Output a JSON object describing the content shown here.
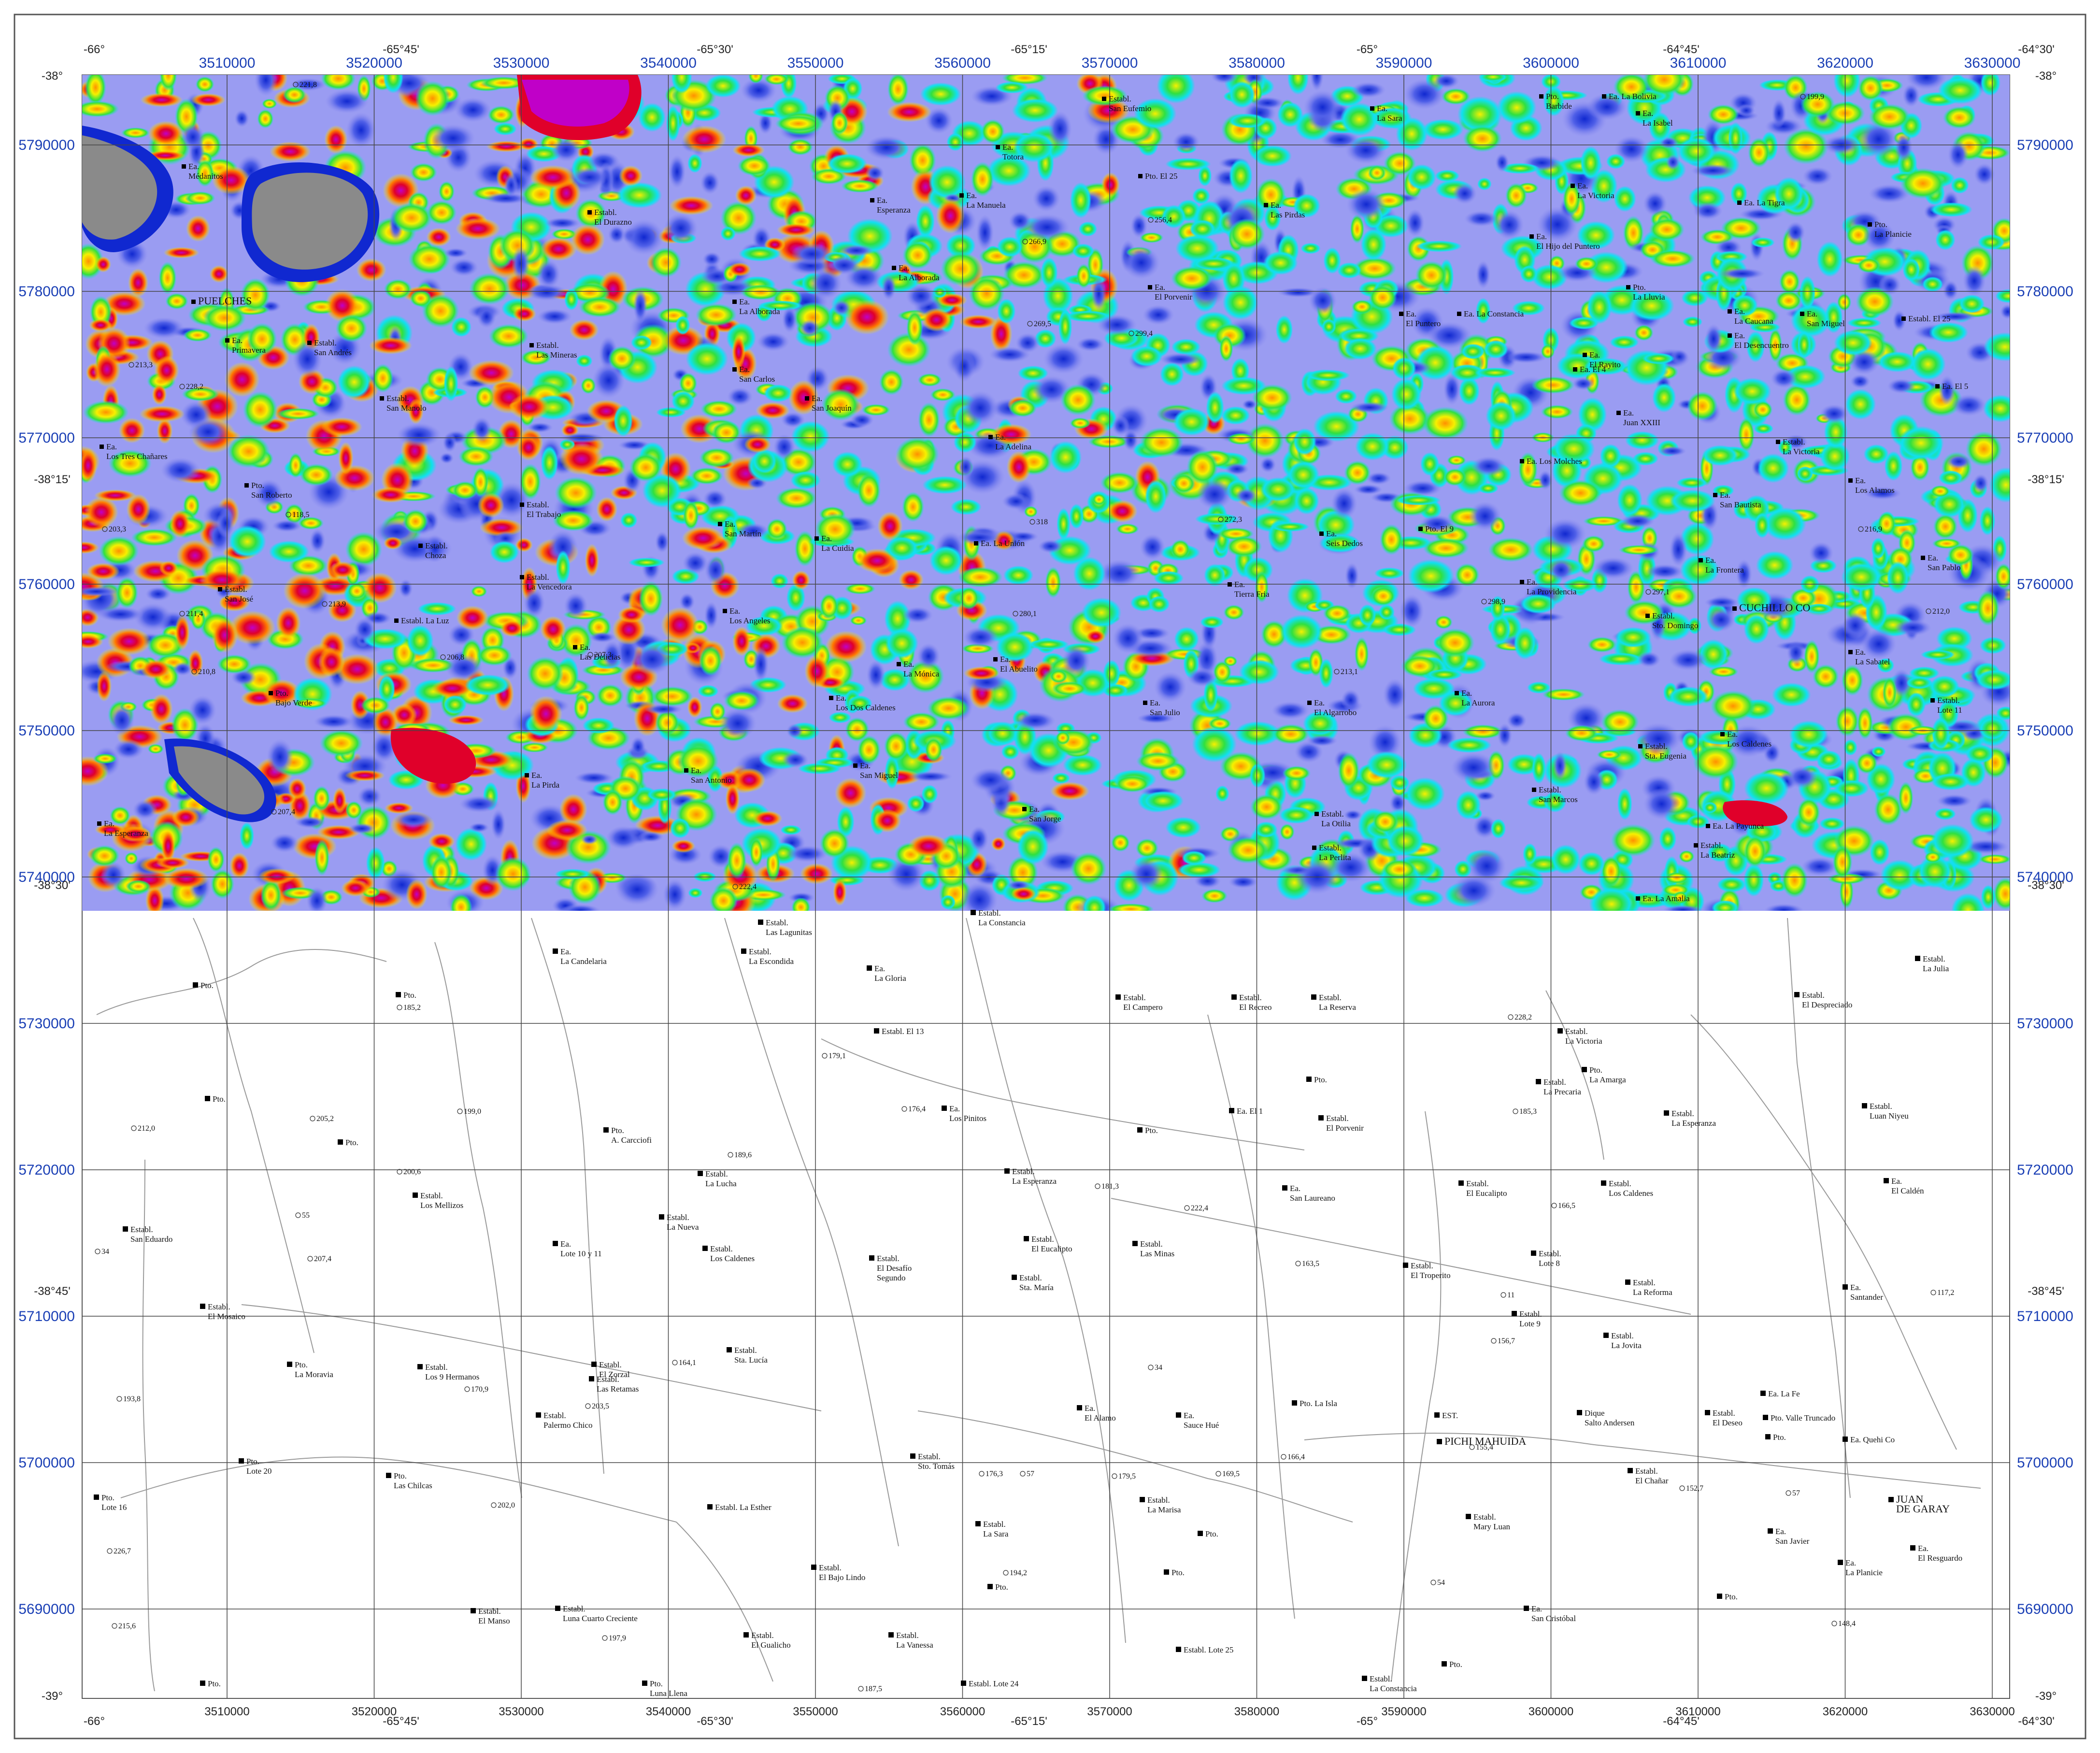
{
  "map": {
    "colors": {
      "frame": "#555555",
      "grid": "#444444",
      "road": "#9a9a9a",
      "background": "#ffffff",
      "lake": "#8a8a8a",
      "magnetic_high": "#e0002a",
      "magnetic_top": "#c000c8",
      "magnetic_mid": "#f6f000",
      "magnetic_low": "#8c8cf0",
      "magnetic_lowest": "#1028d0",
      "magnetic_green": "#30e040",
      "magnetic_cyan": "#10e0f0"
    },
    "utm_x": [
      "3510000",
      "3520000",
      "3530000",
      "3540000",
      "3550000",
      "3560000",
      "3570000",
      "3580000",
      "3590000",
      "3600000",
      "3610000",
      "3620000",
      "3630000"
    ],
    "utm_y": [
      "5790000",
      "5780000",
      "5770000",
      "5760000",
      "5750000",
      "5740000",
      "5730000",
      "5720000",
      "5710000",
      "5700000",
      "5690000"
    ],
    "lon_top": [
      "-66°",
      "-65°45'",
      "-65°30'",
      "-65°15'",
      "-65°",
      "-64°45'",
      "-64°30'"
    ],
    "lat_left": [
      "-38°",
      "-38°15'",
      "-38°30'",
      "-38°45'",
      "-39°"
    ],
    "lat_right": [
      "-38°",
      "-38°15'",
      "-38°30'",
      "-38°45'",
      "-39°"
    ],
    "places_top": [
      {
        "t": "Ea.",
        "t2": "Médanitos"
      },
      {
        "t": "PUELCHES"
      },
      {
        "t": "Ea.",
        "t2": "Primavera"
      },
      {
        "t": "Establ.",
        "t2": "San Andrés"
      },
      {
        "t": "Establ.",
        "t2": "El Durazno"
      },
      {
        "t": "Establ.",
        "t2": "Las Mineras"
      },
      {
        "t": "Establ.",
        "t2": "San Manolo"
      },
      {
        "t": "Ea.",
        "t2": "Los Tres Chañares"
      },
      {
        "t": "Pto.",
        "t2": "San Roberto"
      },
      {
        "t": "Establ.",
        "t2": "El Trabajo"
      },
      {
        "t": "Establ.",
        "t2": "Choza"
      },
      {
        "t": "Establ.",
        "t2": "La Vencedora"
      },
      {
        "t": "Establ.",
        "t2": "San José"
      },
      {
        "t": "Establ. La Luz"
      },
      {
        "t": "Ea.",
        "t2": "Las Delicias"
      },
      {
        "t": "Pto.",
        "t2": "Bajo Verde"
      },
      {
        "t": "Ea.",
        "t2": "La Pirda"
      },
      {
        "t": "Ea.",
        "t2": "La Esperanza"
      },
      {
        "t": "Ea.",
        "t2": "La Alborada"
      },
      {
        "t": "Ea.",
        "t2": "San Carlos"
      },
      {
        "t": "Ea.",
        "t2": "San Joaquín"
      },
      {
        "t": "Ea.",
        "t2": "San Martín"
      },
      {
        "t": "Ea.",
        "t2": "Los Angeles"
      },
      {
        "t": "Ea.",
        "t2": "San Antonio"
      },
      {
        "t": "Ea.",
        "t2": "Esperanza"
      },
      {
        "t": "Ea.",
        "t2": "La Manuela"
      },
      {
        "t": "Ea.",
        "t2": "Totora"
      },
      {
        "t": "Ea.",
        "t2": "La Alborada"
      },
      {
        "t": "Ea.",
        "t2": "La Adelina"
      },
      {
        "t": "Ea. La Unión"
      },
      {
        "t": "Ea.",
        "t2": "La Cuidia"
      },
      {
        "t": "Ea.",
        "t2": "La Mónica"
      },
      {
        "t": "Ea.",
        "t2": "Los Dos Caldenes"
      },
      {
        "t": "Ea.",
        "t2": "San Miguel"
      },
      {
        "t": "Ea.",
        "t2": "El Abuelito"
      },
      {
        "t": "Ea.",
        "t2": "San Jorge"
      },
      {
        "t": "Establ.",
        "t2": "San Eufemio"
      },
      {
        "t": "Pto. El 25"
      },
      {
        "t": "Ea.",
        "t2": "El Porvenir"
      },
      {
        "t": "Ea.",
        "t2": "Las Pirdas"
      },
      {
        "t": "Ea.",
        "t2": "Tierra Fria"
      },
      {
        "t": "Ea.",
        "t2": "Seis Dedos"
      },
      {
        "t": "Ea.",
        "t2": "San Julio"
      },
      {
        "t": "Ea.",
        "t2": "El Algarrobo"
      },
      {
        "t": "Establ.",
        "t2": "La Otilia"
      },
      {
        "t": "Establ.",
        "t2": "La Perlita"
      },
      {
        "t": "Ea.",
        "t2": "La Sara"
      },
      {
        "t": "Ea.",
        "t2": "El Puntero"
      },
      {
        "t": "Ea. La Constancia"
      },
      {
        "t": "Pto. El 9"
      },
      {
        "t": "Ea.",
        "t2": "La Aurora"
      },
      {
        "t": "Pto.",
        "t2": "Barbide"
      },
      {
        "t": "Ea. La Bolivia"
      },
      {
        "t": "Ea.",
        "t2": "La Isabel"
      },
      {
        "t": "Ea.",
        "t2": "La Victoria"
      },
      {
        "t": "Ea.",
        "t2": "El Hijo del Puntero"
      },
      {
        "t": "Ea. El 4"
      },
      {
        "t": "Ea.",
        "t2": "El Rayito"
      },
      {
        "t": "Ea.",
        "t2": "Juan XXIII"
      },
      {
        "t": "Ea. Los Molches"
      },
      {
        "t": "Ea.",
        "t2": "La Providencia"
      },
      {
        "t": "Establ.",
        "t2": "Sto. Domingo"
      },
      {
        "t": "Establ.",
        "t2": "Sta. Eugenia"
      },
      {
        "t": "Establ.",
        "t2": "San Marcos"
      },
      {
        "t": "Ea. La Tigra"
      },
      {
        "t": "Pto.",
        "t2": "La Planicie"
      },
      {
        "t": "Pto.",
        "t2": "La Lluvia"
      },
      {
        "t": "Ea.",
        "t2": "La Caucana"
      },
      {
        "t": "Ea.",
        "t2": "El Desencuentro"
      },
      {
        "t": "Ea.",
        "t2": "San Miguel"
      },
      {
        "t": "Establ. El 25"
      },
      {
        "t": "Ea. El 5"
      },
      {
        "t": "Establ.",
        "t2": "La Victoria"
      },
      {
        "t": "Ea.",
        "t2": "San Bautista"
      },
      {
        "t": "Ea.",
        "t2": "Los Alamos"
      },
      {
        "t": "Ea.",
        "t2": "La Frontera"
      },
      {
        "t": "Ea.",
        "t2": "San Pablo"
      },
      {
        "t": "CUCHILLO CO"
      },
      {
        "t": "Ea.",
        "t2": "La Sabatel"
      },
      {
        "t": "Ea.",
        "t2": "Los Caldenes"
      },
      {
        "t": "Establ.",
        "t2": "Lote 11"
      },
      {
        "t": "Ea. La Payunca"
      },
      {
        "t": "Establ.",
        "t2": "La Beatriz"
      },
      {
        "t": "Ea. La Amalia"
      }
    ],
    "places_bottom": [
      {
        "t": "Ea.",
        "t2": "La Candelaria"
      },
      {
        "t": "Establ.",
        "t2": "Las Lagunitas"
      },
      {
        "t": "Establ.",
        "t2": "La Escondida"
      },
      {
        "t": "Ea.",
        "t2": "La Gloria"
      },
      {
        "t": "Establ.",
        "t2": "La Constancia"
      },
      {
        "t": "Pto."
      },
      {
        "t": "Pto."
      },
      {
        "t": "Pto."
      },
      {
        "t": "Pto."
      },
      {
        "t": "Pto.",
        "t2": "A. Carcciofi"
      },
      {
        "t": "Establ. El 13"
      },
      {
        "t": "Ea.",
        "t2": "Los Pinitos"
      },
      {
        "t": "Establ.",
        "t2": "El Campero"
      },
      {
        "t": "Establ.",
        "t2": "El Recreo"
      },
      {
        "t": "Establ.",
        "t2": "La Reserva"
      },
      {
        "t": "Pto."
      },
      {
        "t": "Ea. El 1"
      },
      {
        "t": "Establ.",
        "t2": "El Porvenir"
      },
      {
        "t": "Pto."
      },
      {
        "t": "Establ.",
        "t2": "La Victoria"
      },
      {
        "t": "Pto.",
        "t2": "La Amarga"
      },
      {
        "t": "Establ.",
        "t2": "La Precaria"
      },
      {
        "t": "Establ.",
        "t2": "La Esperanza"
      },
      {
        "t": "Establ.",
        "t2": "Luan Niyeu"
      },
      {
        "t": "Establ.",
        "t2": "La Julia"
      },
      {
        "t": "Establ.",
        "t2": "El Despreciado"
      },
      {
        "t": "Establ.",
        "t2": "La Lucha"
      },
      {
        "t": "Establ.",
        "t2": "La Esperanza"
      },
      {
        "t": "Establ.",
        "t2": "Los Mellizos"
      },
      {
        "t": "Establ.",
        "t2": "San Eduardo"
      },
      {
        "t": "Ea.",
        "t2": "Lote 10 y 11"
      },
      {
        "t": "Establ.",
        "t2": "La Nueva"
      },
      {
        "t": "Establ.",
        "t2": "Los Caldenes"
      },
      {
        "t": "Establ.",
        "t2": "El Desafío",
        "t3": "Segundo"
      },
      {
        "t": "Establ.",
        "t2": "El Eucalipto"
      },
      {
        "t": "Establ.",
        "t2": "Sta. María"
      },
      {
        "t": "Establ.",
        "t2": "Las Minas"
      },
      {
        "t": "Ea.",
        "t2": "San Laureano"
      },
      {
        "t": "Establ.",
        "t2": "El Eucalipto"
      },
      {
        "t": "Establ.",
        "t2": "Los Caldenes"
      },
      {
        "t": "Ea.",
        "t2": "El Caldén"
      },
      {
        "t": "Establ.",
        "t2": "Lote 8"
      },
      {
        "t": "Establ.",
        "t2": "El Troperito"
      },
      {
        "t": "Establ.",
        "t2": "La Reforma"
      },
      {
        "t": "Ea.",
        "t2": "Santander"
      },
      {
        "t": "Establ.",
        "t2": "El Mosaico"
      },
      {
        "t": "Establ.",
        "t2": "Lote 9"
      },
      {
        "t": "Establ.",
        "t2": "La Jovita"
      },
      {
        "t": "Pto.",
        "t2": "La Moravia"
      },
      {
        "t": "Establ.",
        "t2": "Los 9 Hermanos"
      },
      {
        "t": "Establ.",
        "t2": "El Zorzal"
      },
      {
        "t": "Establ.",
        "t2": "Las Retamas"
      },
      {
        "t": "Establ.",
        "t2": "Sta. Lucía"
      },
      {
        "t": "Establ.",
        "t2": "Palermo Chico"
      },
      {
        "t": "Ea.",
        "t2": "El Alamo"
      },
      {
        "t": "Ea.",
        "t2": "Sauce Hué"
      },
      {
        "t": "Pto. La Isla"
      },
      {
        "t": "EST."
      },
      {
        "t": "PICHI MAHUIDA"
      },
      {
        "t": "Dique",
        "t2": "Salto Andersen"
      },
      {
        "t": "Establ.",
        "t2": "El Deseo"
      },
      {
        "t": "Pto. Valle Truncado"
      },
      {
        "t": "Ea. La Fe"
      },
      {
        "t": "Pto."
      },
      {
        "t": "Ea. Quehi Co"
      },
      {
        "t": "Pto.",
        "t2": "Lote 20"
      },
      {
        "t": "Pto.",
        "t2": "Las Chilcas"
      },
      {
        "t": "Establ.",
        "t2": "Sto. Tomás"
      },
      {
        "t": "Establ.",
        "t2": "La Marisa"
      },
      {
        "t": "Establ.",
        "t2": "El Chañar"
      },
      {
        "t": "Establ.",
        "t2": "Mary Luan"
      },
      {
        "t": "Pto.",
        "t2": "Lote 16"
      },
      {
        "t": "Establ. La Esther"
      },
      {
        "t": "Establ.",
        "t2": "La Sara"
      },
      {
        "t": "Pto."
      },
      {
        "t": "Ea.",
        "t2": "San Javier"
      },
      {
        "t": "JUAN",
        "t2": "DE GARAY"
      },
      {
        "t": "Ea.",
        "t2": "La Planicie"
      },
      {
        "t": "Ea.",
        "t2": "El Resguardo"
      },
      {
        "t": "Establ.",
        "t2": "El Bajo Lindo"
      },
      {
        "t": "Pto."
      },
      {
        "t": "Pto."
      },
      {
        "t": "Establ.",
        "t2": "El Manso"
      },
      {
        "t": "Establ.",
        "t2": "Luna Cuarto Creciente"
      },
      {
        "t": "Establ.",
        "t2": "El Gualicho"
      },
      {
        "t": "Establ.",
        "t2": "La Vanessa"
      },
      {
        "t": "Establ. Lote 25"
      },
      {
        "t": "Ea.",
        "t2": "San Cristóbal"
      },
      {
        "t": "Pto."
      },
      {
        "t": "Pto.",
        "t2": "Luna Llena"
      },
      {
        "t": "Establ. Lote 24"
      },
      {
        "t": "Establ.",
        "t2": "La Constancia"
      },
      {
        "t": "Pto."
      },
      {
        "t": "Pto."
      }
    ],
    "elevations": [
      "221,8",
      "213,3",
      "228,2",
      "203,3",
      "211,4",
      "210,8",
      "207,4",
      "118,5",
      "213,9",
      "206,8",
      "207,3",
      "256,4",
      "266,9",
      "269,5",
      "299,4",
      "318",
      "280,1",
      "272,3",
      "213,1",
      "298,9",
      "297,1",
      "199,9",
      "216,9",
      "212,0",
      "222,4",
      "185,2",
      "212,0",
      "205,2",
      "199,0",
      "200,6",
      "207,4",
      "193,8",
      "226,7",
      "215,6",
      "202,0",
      "170,9",
      "203,5",
      "164,1",
      "189,6",
      "179,1",
      "176,4",
      "181,3",
      "222,4",
      "163,5",
      "228,2",
      "185,3",
      "166,5",
      "156,7",
      "117,2",
      "166,4",
      "155,4",
      "152,7",
      "169,5",
      "179,5",
      "176,3",
      "194,2",
      "197,9",
      "187,5",
      "148,4",
      "57",
      "57",
      "34",
      "34",
      "54",
      "11",
      "55"
    ]
  }
}
